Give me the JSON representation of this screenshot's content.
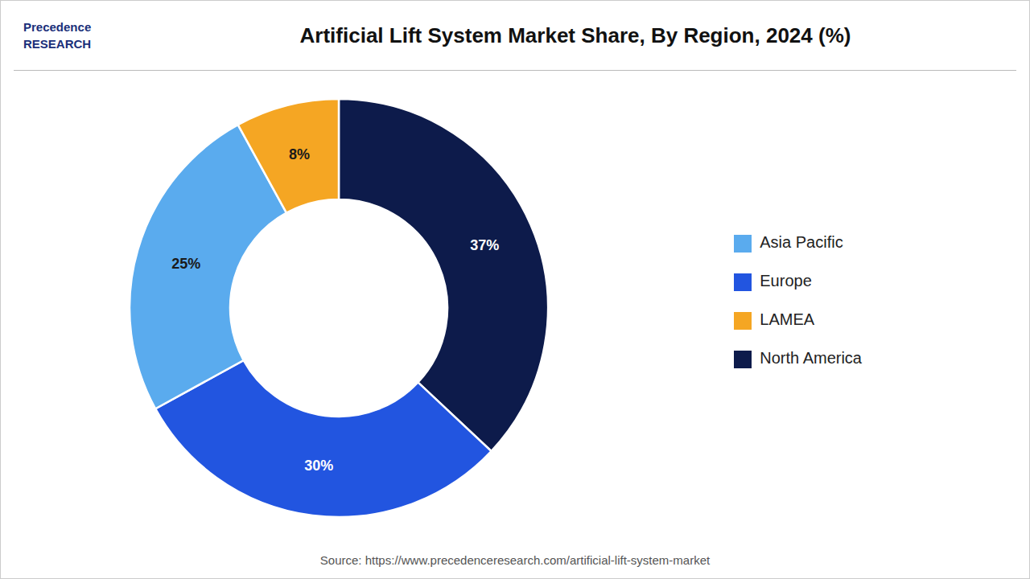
{
  "chart_data": {
    "type": "pie",
    "title": "Artificial Lift System Market Share, By Region, 2024 (%)",
    "categories": [
      "North America",
      "Europe",
      "Asia Pacific",
      "LAMEA"
    ],
    "values": [
      37,
      30,
      25,
      8
    ],
    "value_labels": [
      "37%",
      "30%",
      "25%",
      "8%"
    ],
    "colors": [
      "#0d1b4b",
      "#2255e0",
      "#5aabee",
      "#f5a623"
    ],
    "data_labels": true,
    "legend": "right",
    "annotations": [
      "Precedence\nRESEARCH",
      "Source: https://www.precedenceresearch.com/artificial-lift-system-market"
    ]
  }
}
